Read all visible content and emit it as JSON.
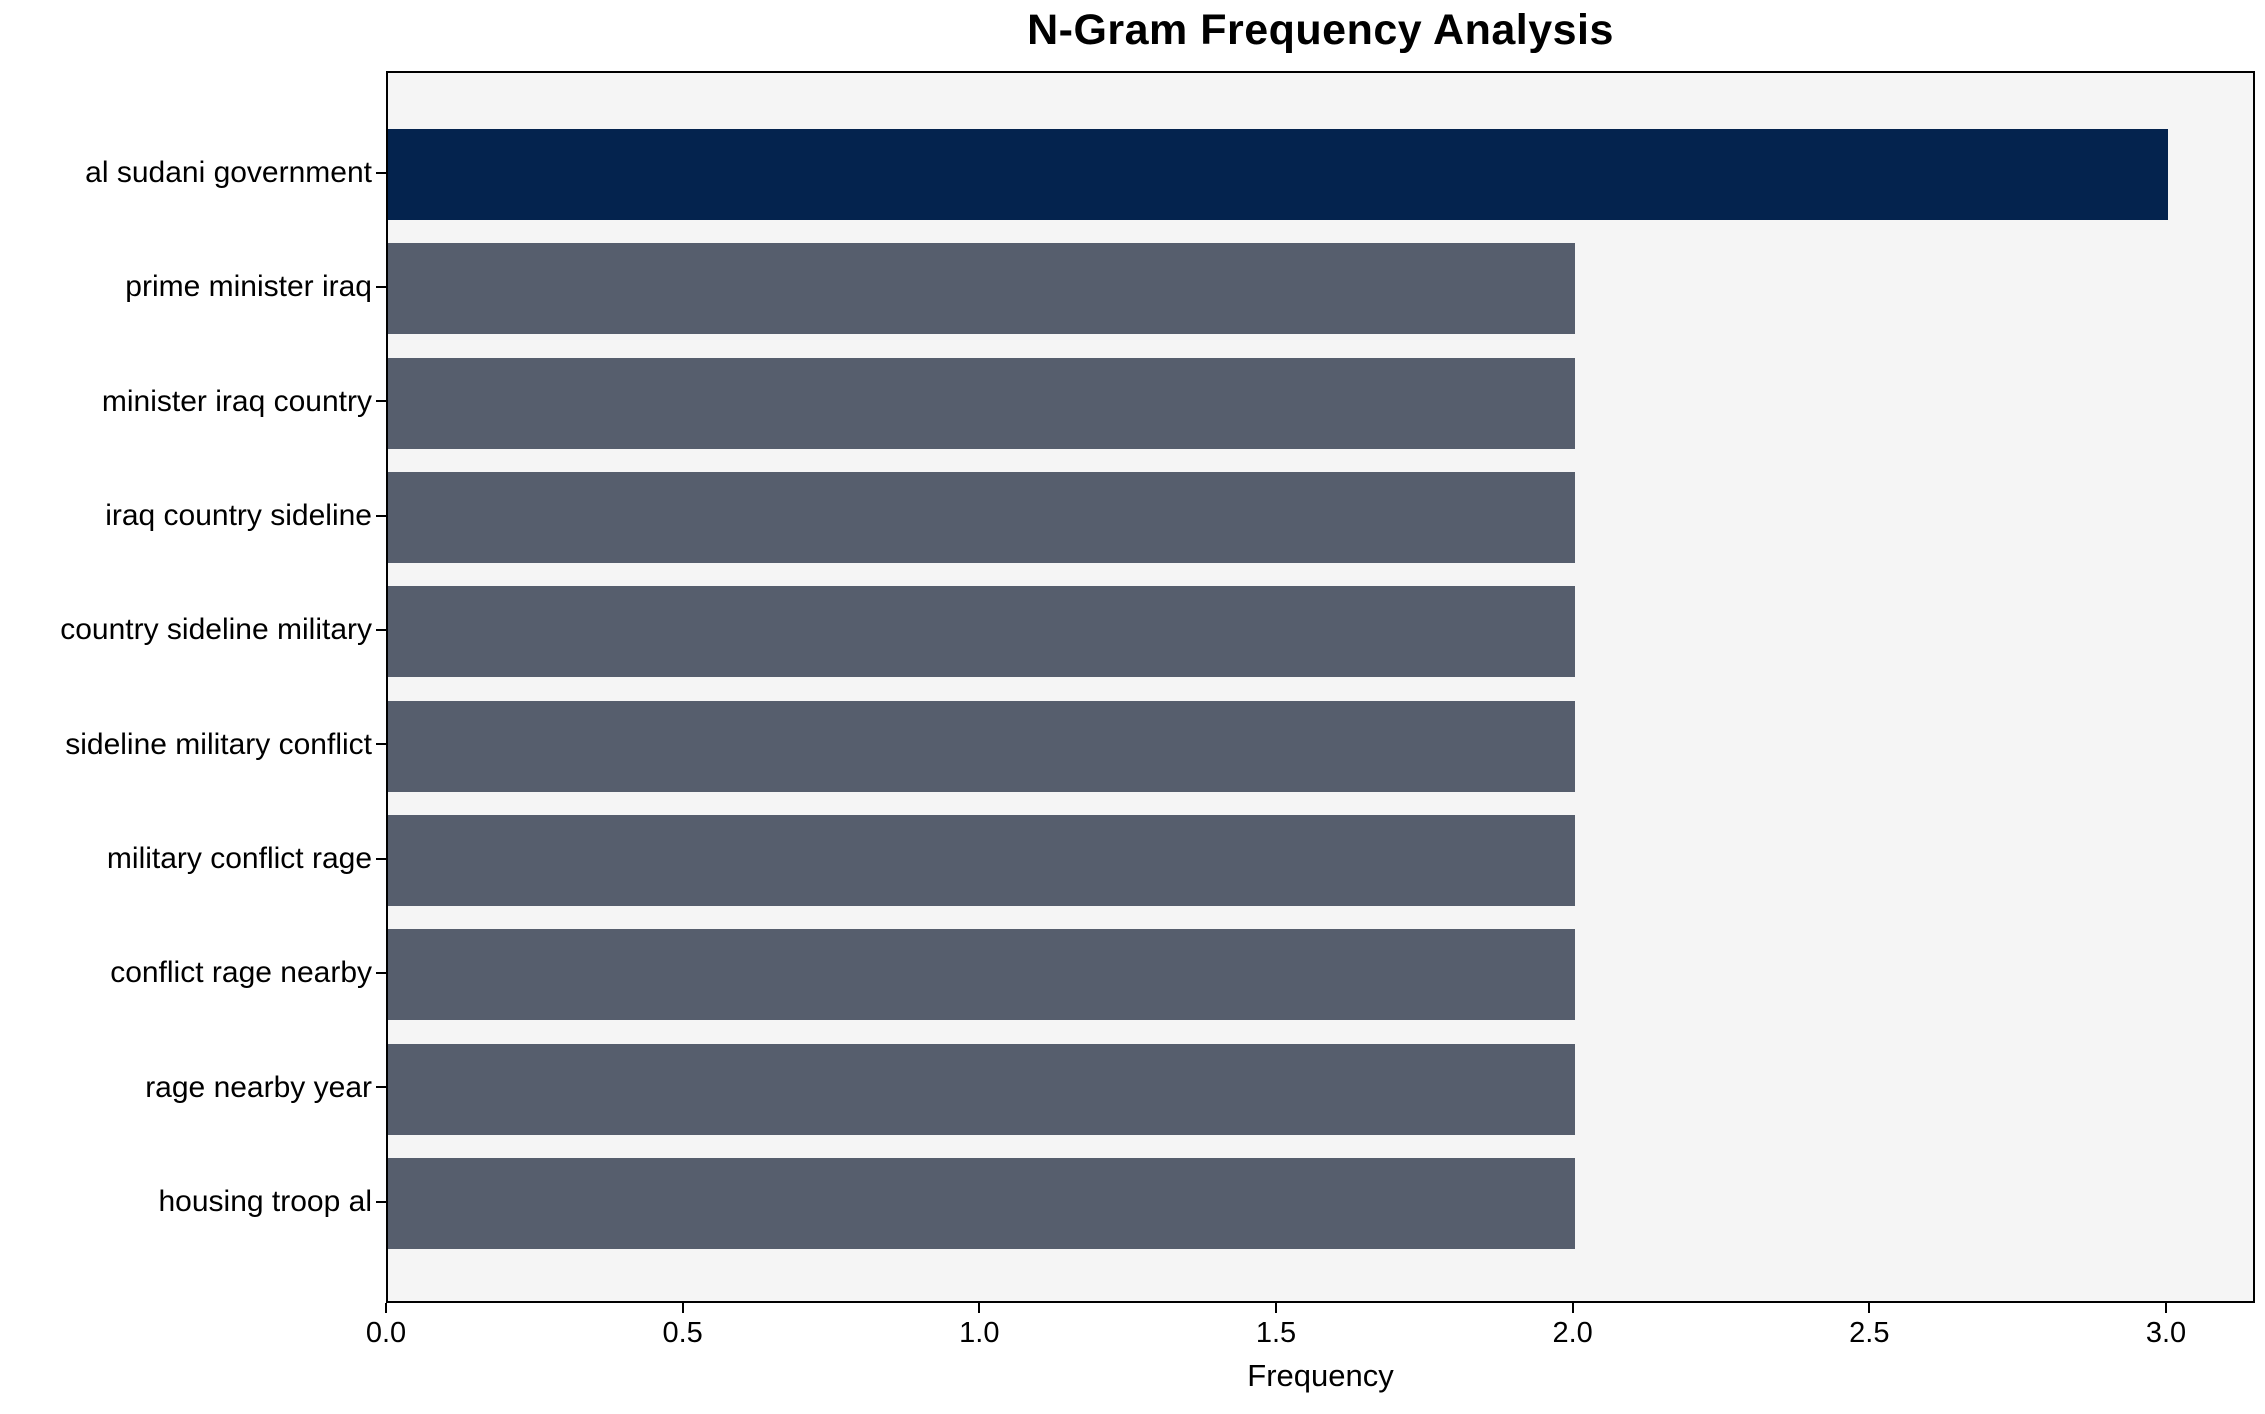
{
  "chart_data": {
    "type": "bar",
    "orientation": "horizontal",
    "title": "N-Gram Frequency Analysis",
    "xlabel": "Frequency",
    "ylabel": "",
    "categories": [
      "al sudani government",
      "prime minister iraq",
      "minister iraq country",
      "iraq country sideline",
      "country sideline military",
      "sideline military conflict",
      "military conflict rage",
      "conflict rage nearby",
      "rage nearby year",
      "housing troop al"
    ],
    "values": [
      3,
      2,
      2,
      2,
      2,
      2,
      2,
      2,
      2,
      2
    ],
    "highlight_index": 0,
    "xlim": [
      0,
      3.15
    ],
    "xtick_values": [
      0,
      0.5,
      1.0,
      1.5,
      2.0,
      2.5,
      3.0
    ],
    "xtick_labels": [
      "0.0",
      "0.5",
      "1.0",
      "1.5",
      "2.0",
      "2.5",
      "3.0"
    ],
    "grid": false,
    "legend": null,
    "colors": {
      "highlight_bar": "#04234e",
      "default_bar": "#565e6d",
      "plot_background": "#f5f5f5",
      "figure_background": "#ffffff",
      "spine": "#000000",
      "text": "#000000"
    }
  }
}
